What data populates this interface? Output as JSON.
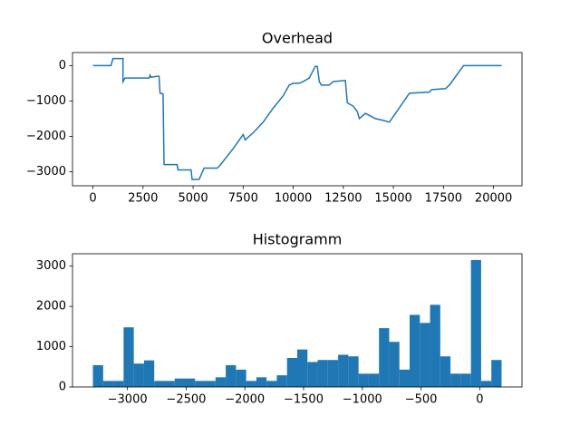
{
  "chart_data": [
    {
      "type": "line",
      "title": "Overhead",
      "color": "#1f77b4",
      "x": [
        0,
        900,
        1000,
        1500,
        1500,
        1600,
        2800,
        2850,
        2900,
        3200,
        3300,
        3350,
        3500,
        3550,
        4200,
        4250,
        4900,
        4950,
        5300,
        5550,
        6200,
        6300,
        7000,
        7500,
        7600,
        8000,
        8500,
        9000,
        9500,
        9800,
        10000,
        10300,
        10500,
        10800,
        11100,
        11200,
        11300,
        11400,
        11800,
        12000,
        12600,
        12700,
        13000,
        13200,
        13300,
        13600,
        14100,
        14500,
        14800,
        15800,
        16800,
        16900,
        17600,
        17800,
        18500,
        20400
      ],
      "values": [
        0,
        0,
        200,
        200,
        -450,
        -350,
        -350,
        -270,
        -330,
        -300,
        -300,
        -780,
        -800,
        -2800,
        -2800,
        -2950,
        -2950,
        -3220,
        -3220,
        -2900,
        -2900,
        -2850,
        -2350,
        -1950,
        -2100,
        -1900,
        -1600,
        -1200,
        -850,
        -550,
        -500,
        -500,
        -450,
        -350,
        -20,
        -20,
        -450,
        -550,
        -550,
        -450,
        -420,
        -1050,
        -1150,
        -1300,
        -1500,
        -1350,
        -1500,
        -1550,
        -1600,
        -780,
        -750,
        -680,
        -650,
        -550,
        0,
        0
      ],
      "xlim": [
        -1020,
        21420
      ],
      "xticks": [
        0,
        2500,
        5000,
        7500,
        10000,
        12500,
        15000,
        17500,
        20000
      ],
      "ylim": [
        -3400,
        370
      ],
      "yticks": [
        {
          "value": -3000,
          "label": "−3000"
        },
        {
          "value": -2000,
          "label": "−2000"
        },
        {
          "value": -1000,
          "label": "−1000"
        },
        0
      ]
    },
    {
      "type": "histogram",
      "title": "Histogramm",
      "color": "#1f77b4",
      "bins": [
        -3294,
        -3207,
        -3120,
        -3033,
        -2946,
        -2859,
        -2772,
        -2685,
        -2598,
        -2511,
        -2424,
        -2337,
        -2250,
        -2163,
        -2076,
        -1989,
        -1902,
        -1815,
        -1728,
        -1641,
        -1554,
        -1467,
        -1380,
        -1293,
        -1206,
        -1119,
        -1032,
        -945,
        -858,
        -771,
        -684,
        -597,
        -510,
        -423,
        -336,
        -249,
        -162,
        -75,
        12,
        99,
        186
      ],
      "values": [
        540,
        150,
        150,
        1480,
        580,
        660,
        150,
        150,
        210,
        210,
        150,
        150,
        240,
        540,
        430,
        150,
        240,
        150,
        290,
        720,
        930,
        620,
        670,
        670,
        800,
        760,
        330,
        330,
        1460,
        1120,
        430,
        1790,
        1590,
        2040,
        760,
        330,
        330,
        3150,
        150,
        670
      ],
      "xlim": [
        -3468,
        360
      ],
      "xticks": [
        {
          "value": -3000,
          "label": "−3000"
        },
        {
          "value": -2500,
          "label": "−2500"
        },
        {
          "value": -2000,
          "label": "−2000"
        },
        {
          "value": -1500,
          "label": "−1500"
        },
        {
          "value": -1000,
          "label": "−1000"
        },
        {
          "value": -500,
          "label": "−500"
        },
        0
      ],
      "ylim": [
        0,
        3307
      ],
      "yticks": [
        0,
        1000,
        2000,
        3000
      ]
    }
  ]
}
